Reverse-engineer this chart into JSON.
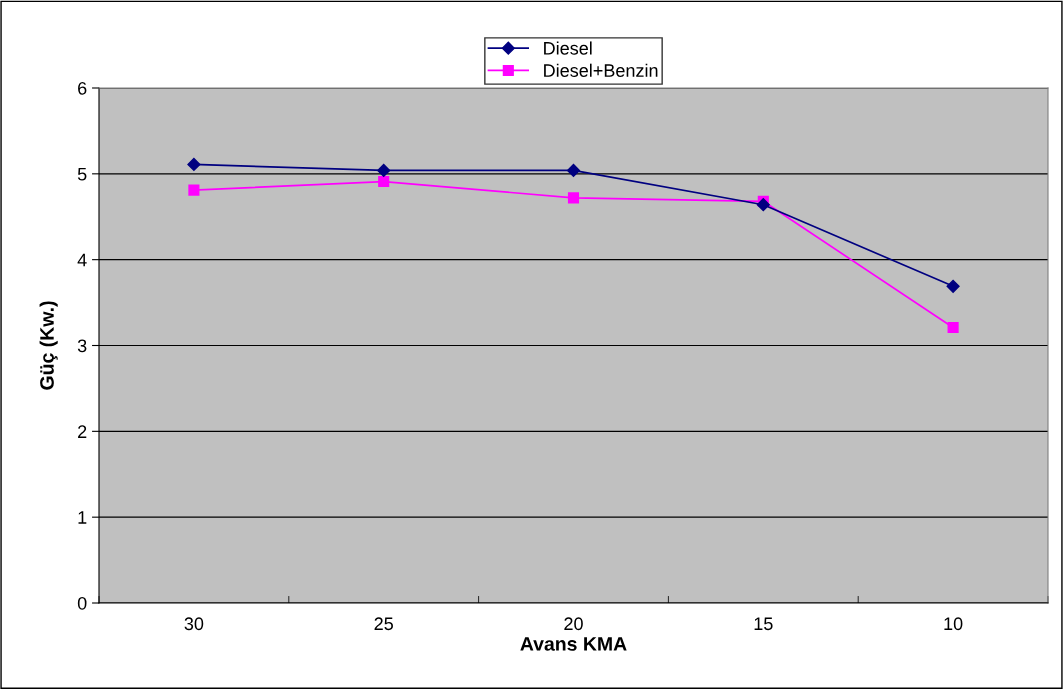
{
  "chart_data": {
    "type": "line",
    "xlabel": "Avans KMA",
    "ylabel": "Güç (Kw.)",
    "categories": [
      "30",
      "25",
      "20",
      "15",
      "10"
    ],
    "series": [
      {
        "name": "Diesel",
        "color": "#000080",
        "marker": "diamond",
        "values": [
          5.11,
          5.04,
          5.04,
          4.64,
          3.69
        ]
      },
      {
        "name": "Diesel+Benzin",
        "color": "#ff00ff",
        "marker": "square",
        "values": [
          4.81,
          4.91,
          4.72,
          4.68,
          3.21
        ]
      }
    ],
    "ylim": [
      0,
      6
    ],
    "yticks": [
      0,
      1,
      2,
      3,
      4,
      5,
      6
    ],
    "grid": "y",
    "legend": "top",
    "line_style": "solid"
  }
}
